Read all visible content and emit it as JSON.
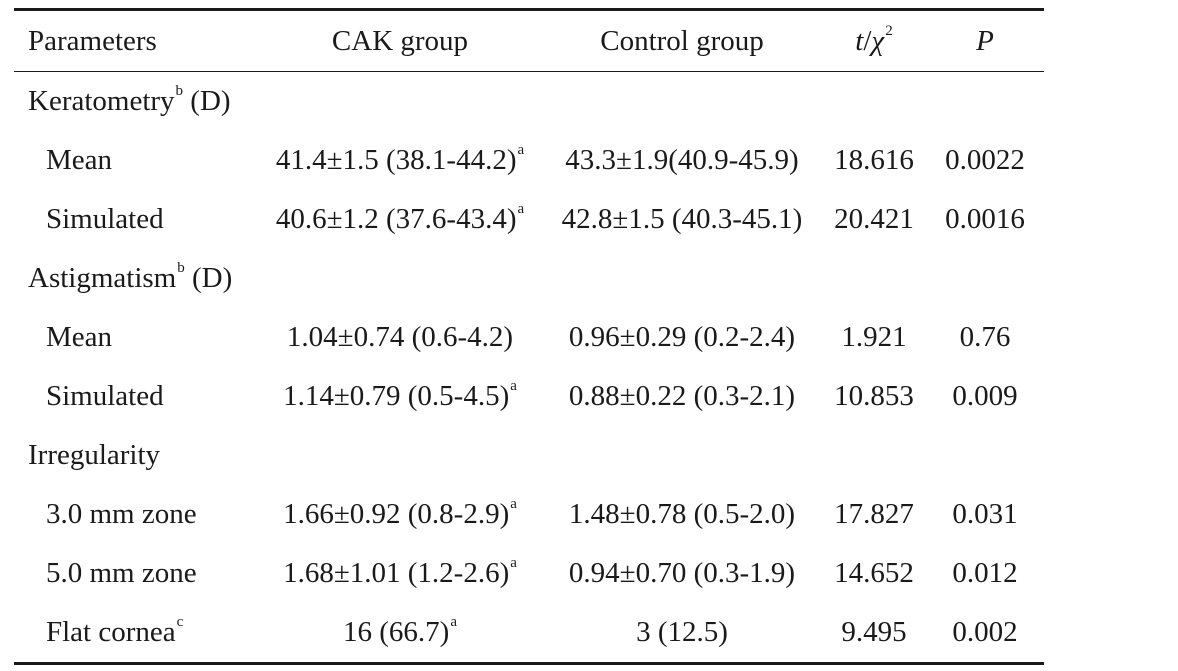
{
  "table": {
    "headers": {
      "parameters": "Parameters",
      "cak": "CAK group",
      "control": "Control group",
      "t_prefix": "t",
      "t_sep": "/",
      "chi": "χ",
      "chi_exp": "2",
      "p": "P"
    },
    "rows": [
      {
        "param": "Keratometry",
        "param_sup": "b",
        "param_suffix": " (D)"
      },
      {
        "param": "Mean",
        "cak": "41.4±1.5 (38.1-44.2)",
        "cak_sup": "a",
        "control": "43.3±1.9(40.9-45.9)",
        "t": "18.616",
        "p": "0.0022"
      },
      {
        "param": "Simulated",
        "cak": "40.6±1.2 (37.6-43.4)",
        "cak_sup": "a",
        "control": "42.8±1.5 (40.3-45.1)",
        "t": "20.421",
        "p": "0.0016"
      },
      {
        "param": "Astigmatism",
        "param_sup": "b",
        "param_suffix": " (D)"
      },
      {
        "param": "Mean",
        "cak": "1.04±0.74 (0.6-4.2)",
        "control": "0.96±0.29 (0.2-2.4)",
        "t": "1.921",
        "p": "0.76"
      },
      {
        "param": "Simulated",
        "cak": "1.14±0.79 (0.5-4.5)",
        "cak_sup": "a",
        "control": "0.88±0.22 (0.3-2.1)",
        "t": "10.853",
        "p": "0.009"
      },
      {
        "param": "Irregularity"
      },
      {
        "param": "3.0 mm zone",
        "cak": "1.66±0.92 (0.8-2.9)",
        "cak_sup": "a",
        "control": "1.48±0.78 (0.5-2.0)",
        "t": "17.827",
        "p": "0.031"
      },
      {
        "param": "5.0 mm zone",
        "cak": "1.68±1.01 (1.2-2.6)",
        "cak_sup": "a",
        "control": "0.94±0.70 (0.3-1.9)",
        "t": "14.652",
        "p": "0.012"
      },
      {
        "param": "Flat cornea",
        "param_sup": "c",
        "cak": "16 (66.7)",
        "cak_sup": "a",
        "control": "3 (12.5)",
        "t": "9.495",
        "p": "0.002"
      }
    ]
  }
}
